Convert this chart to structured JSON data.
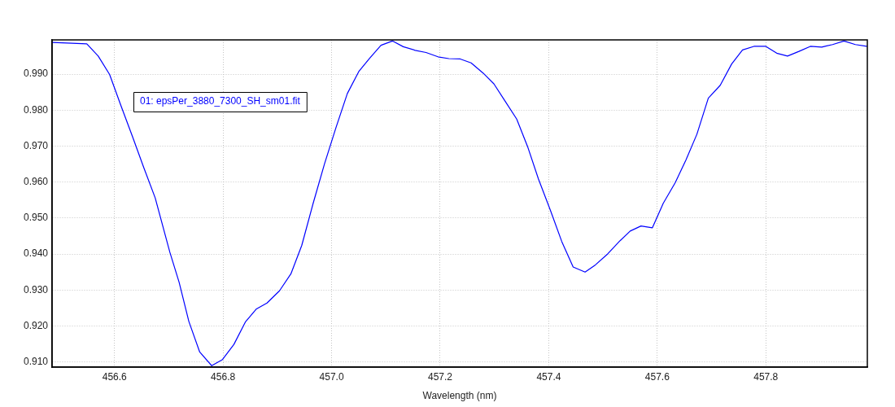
{
  "chart_data": {
    "type": "line",
    "xlabel": "Wavelength (nm)",
    "x": [
      456.486,
      456.549,
      456.57,
      456.591,
      456.612,
      456.633,
      456.654,
      456.675,
      456.702,
      456.719,
      456.737,
      456.757,
      456.779,
      456.799,
      456.82,
      456.841,
      456.861,
      456.881,
      456.904,
      456.925,
      456.945,
      456.966,
      456.987,
      457.008,
      457.029,
      457.05,
      457.07,
      457.091,
      457.112,
      457.132,
      457.154,
      457.174,
      457.196,
      457.216,
      457.237,
      457.257,
      457.279,
      457.299,
      457.32,
      457.341,
      457.361,
      457.381,
      457.404,
      457.424,
      457.445,
      457.467,
      457.486,
      457.509,
      457.53,
      457.55,
      457.57,
      457.591,
      457.611,
      457.633,
      457.653,
      457.673,
      457.694,
      457.716,
      457.737,
      457.757,
      457.778,
      457.8,
      457.82,
      457.84,
      457.861,
      457.882,
      457.903,
      457.923,
      457.944,
      457.965,
      457.986
    ],
    "series": [
      {
        "name": "01: epsPer_3880_7300_SH_sm01.fit",
        "color": "#0000ff",
        "values": [
          0.9988,
          0.9984,
          0.995,
          0.9899,
          0.9812,
          0.9727,
          0.964,
          0.9556,
          0.9405,
          0.9322,
          0.9213,
          0.9128,
          0.909,
          0.9107,
          0.9149,
          0.9211,
          0.9247,
          0.9264,
          0.9298,
          0.9345,
          0.9424,
          0.9541,
          0.9651,
          0.9751,
          0.9846,
          0.9907,
          0.9944,
          0.998,
          0.9992,
          0.9976,
          0.9966,
          0.996,
          0.9948,
          0.9943,
          0.9942,
          0.9931,
          0.9903,
          0.9873,
          0.9824,
          0.9775,
          0.9699,
          0.9609,
          0.9518,
          0.9435,
          0.9364,
          0.935,
          0.937,
          0.9401,
          0.9435,
          0.9464,
          0.9478,
          0.9473,
          0.9541,
          0.9598,
          0.9662,
          0.9733,
          0.9833,
          0.9869,
          0.9928,
          0.9967,
          0.9977,
          0.9977,
          0.9958,
          0.995,
          0.9963,
          0.9977,
          0.9975,
          0.9982,
          0.9992,
          0.9982,
          0.9977
        ]
      }
    ],
    "xlim": [
      456.485,
      457.987
    ],
    "ylim": [
      0.9086,
      0.9995
    ],
    "xticks": [
      456.6,
      456.8,
      {
        "value": 457,
        "label": "457.0"
      },
      457.2,
      457.4,
      457.6,
      457.8
    ],
    "yticks": [
      {
        "value": 0.91,
        "label": "0.910"
      },
      {
        "value": 0.92,
        "label": "0.920"
      },
      {
        "value": 0.93,
        "label": "0.930"
      },
      {
        "value": 0.94,
        "label": "0.940"
      },
      {
        "value": 0.95,
        "label": "0.950"
      },
      {
        "value": 0.96,
        "label": "0.960"
      },
      {
        "value": 0.97,
        "label": "0.970"
      },
      {
        "value": 0.98,
        "label": "0.980"
      },
      {
        "value": 0.99,
        "label": "0.990"
      }
    ],
    "grid": true,
    "legend": "top left",
    "marker": "none",
    "line_style": "solid"
  }
}
